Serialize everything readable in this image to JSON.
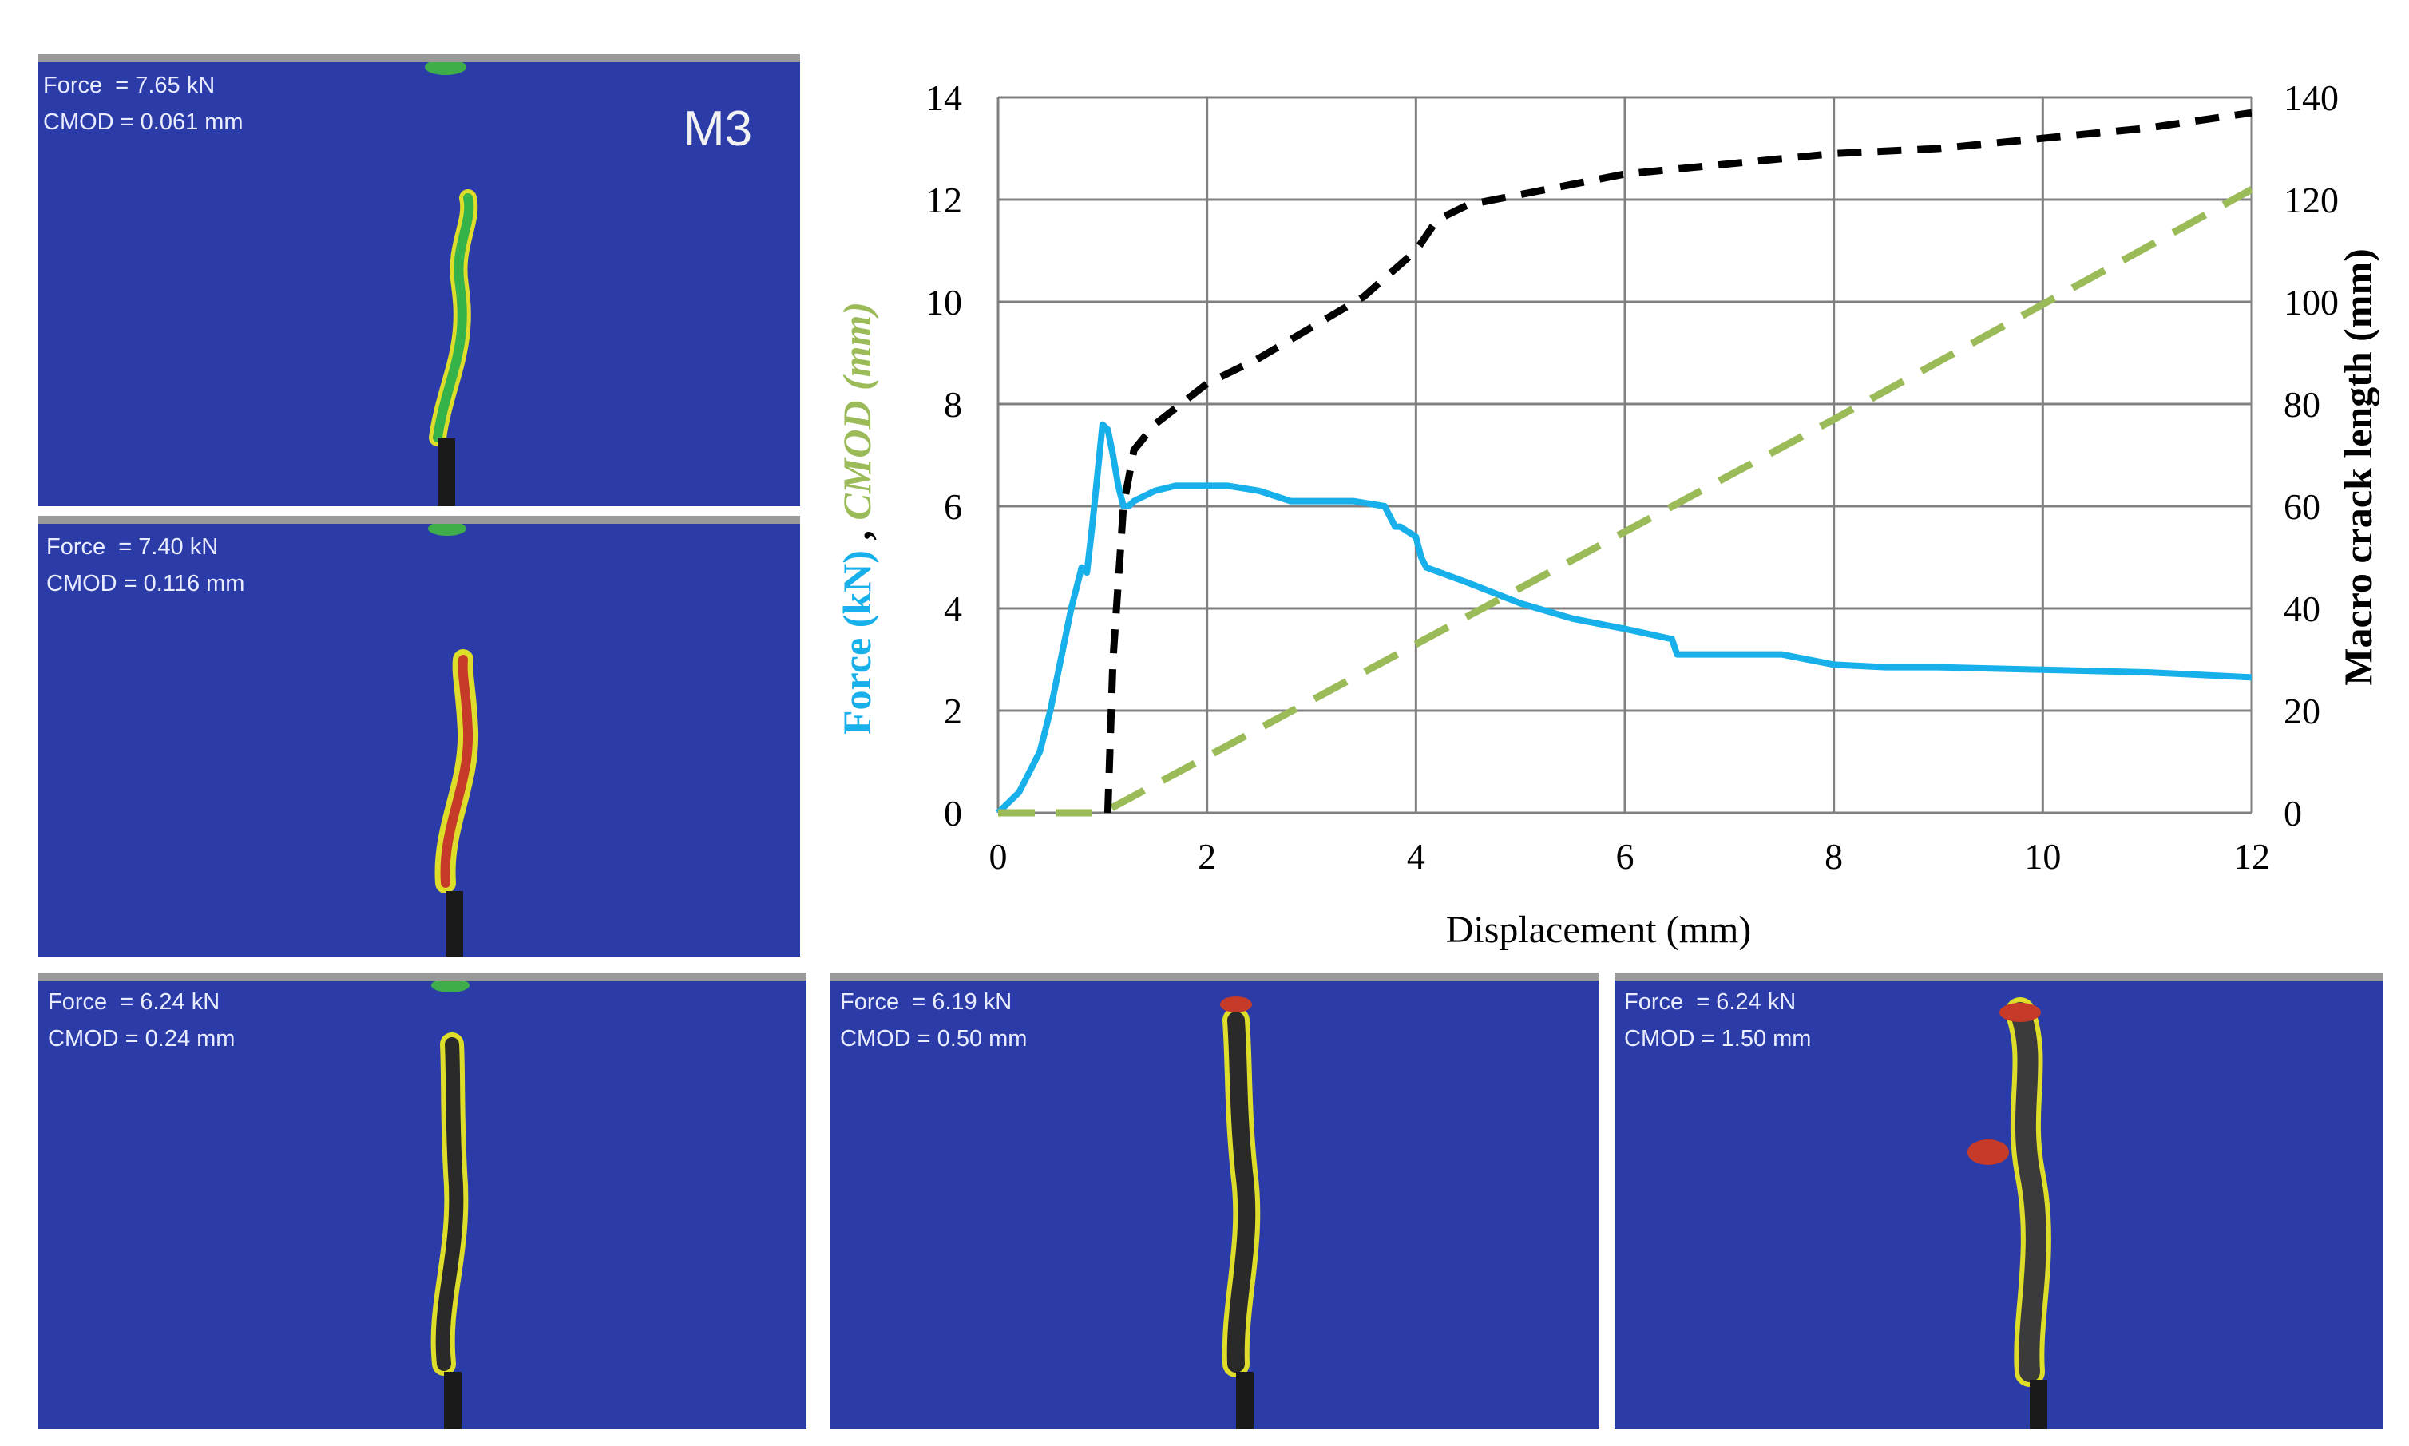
{
  "panels": [
    {
      "force": "Force  = 7.65 kN",
      "cmod": "CMOD = 0.061 mm",
      "tag": "M3"
    },
    {
      "force": "Force  = 7.40 kN",
      "cmod": "CMOD = 0.116 mm"
    },
    {
      "force": "Force  = 6.24 kN",
      "cmod": "CMOD = 0.24 mm"
    },
    {
      "force": "Force  = 6.19 kN",
      "cmod": "CMOD = 0.50 mm"
    },
    {
      "force": "Force  = 6.24 kN",
      "cmod": "CMOD = 1.50 mm"
    }
  ],
  "colors": {
    "force": "#17b0ea",
    "cmod": "#9bbb59",
    "crack": "#000000",
    "grid": "#808080",
    "specimen": "#2b3ca8"
  },
  "chart_data": {
    "type": "line",
    "xlabel": "Displacement (mm)",
    "ylabel_force": "Force (kN)",
    "ylabel_sep": " , ",
    "ylabel_cmod": "CMOD (mm)",
    "y2label": "Macro crack length (mm)",
    "xlim": [
      0,
      12
    ],
    "ylim": [
      0,
      14
    ],
    "y2lim": [
      0,
      140
    ],
    "xticks": [
      "0",
      "2",
      "4",
      "6",
      "8",
      "10",
      "12"
    ],
    "yticks": [
      "0",
      "2",
      "4",
      "6",
      "8",
      "10",
      "12",
      "14"
    ],
    "y2ticks": [
      "0",
      "20",
      "40",
      "60",
      "80",
      "100",
      "120",
      "140"
    ],
    "grid": true,
    "series": [
      {
        "name": "Force (kN)",
        "axis": "left",
        "style": "solid",
        "x": [
          0,
          0.1,
          0.2,
          0.3,
          0.4,
          0.5,
          0.6,
          0.7,
          0.8,
          0.85,
          0.9,
          0.95,
          1.0,
          1.05,
          1.1,
          1.15,
          1.2,
          1.25,
          1.3,
          1.4,
          1.5,
          1.7,
          1.9,
          2.2,
          2.5,
          2.8,
          3.0,
          3.4,
          3.7,
          3.8,
          3.85,
          4.0,
          4.05,
          4.1,
          4.5,
          5.0,
          5.5,
          6.0,
          6.45,
          6.5,
          7.0,
          7.5,
          8.0,
          8.5,
          9.0,
          10.0,
          11.0,
          12.0
        ],
        "y": [
          0,
          0.2,
          0.4,
          0.8,
          1.2,
          2.0,
          3.0,
          4.0,
          4.8,
          4.7,
          5.6,
          6.6,
          7.6,
          7.5,
          7.0,
          6.4,
          6.0,
          6.0,
          6.1,
          6.2,
          6.3,
          6.4,
          6.4,
          6.4,
          6.3,
          6.1,
          6.1,
          6.1,
          6.0,
          5.6,
          5.6,
          5.4,
          5.0,
          4.8,
          4.5,
          4.1,
          3.8,
          3.6,
          3.4,
          3.1,
          3.1,
          3.1,
          2.9,
          2.85,
          2.85,
          2.8,
          2.75,
          2.65
        ]
      },
      {
        "name": "CMOD (mm)",
        "axis": "left",
        "style": "long-dash",
        "x": [
          0,
          1.0,
          4.0,
          8.0,
          12.0
        ],
        "y": [
          0,
          0,
          3.3,
          7.7,
          12.2
        ]
      },
      {
        "name": "Macro crack length (mm)",
        "axis": "right",
        "style": "short-dash",
        "x": [
          1.05,
          1.1,
          1.2,
          1.3,
          1.5,
          2.0,
          2.5,
          3.0,
          3.5,
          4.0,
          4.2,
          4.5,
          5.0,
          6.0,
          7.0,
          8.0,
          9.0,
          10.0,
          11.0,
          12.0
        ],
        "y": [
          0,
          30,
          60,
          71,
          76,
          84,
          89,
          95,
          101,
          110,
          116,
          119,
          121,
          125,
          127,
          129,
          130,
          132,
          134,
          137
        ]
      }
    ]
  }
}
